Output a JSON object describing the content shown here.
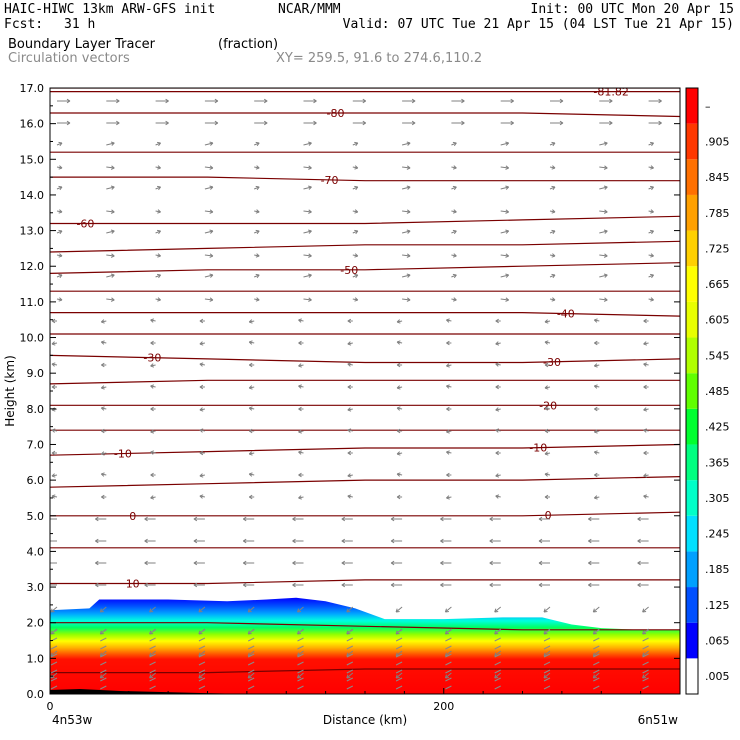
{
  "header": {
    "model": "HAIC-HIWC 13km ARW-GFS init",
    "org": "NCAR/MMM",
    "init": "Init: 00 UTC Mon 20 Apr 15",
    "fcst_label": "Fcst:",
    "fcst_value": "31 h",
    "valid": "Valid: 07 UTC Tue 21 Apr 15 (04 LST Tue 21 Apr 15)",
    "field": "Boundary Layer Tracer",
    "field_units": "(fraction)",
    "vectors": "Circulation vectors",
    "xy": "XY= 259.5, 91.6 to 274.6,110.2"
  },
  "chart_data": {
    "type": "cross-section",
    "xlabel": "Distance (km)",
    "ylabel": "Height (km)",
    "xlim": [
      0,
      320
    ],
    "ylim": [
      0,
      17
    ],
    "x_ticks": [
      0,
      200
    ],
    "x_tick_labels": [
      "0",
      "200"
    ],
    "y_ticks": [
      0,
      1,
      2,
      3,
      4,
      5,
      6,
      7,
      8,
      9,
      10,
      11,
      12,
      13,
      14,
      15,
      16,
      17
    ],
    "y_tick_labels": [
      "0.0",
      "1.0",
      "2.0",
      "3.0",
      "4.0",
      "5.0",
      "6.0",
      "7.0",
      "8.0",
      "9.0",
      "10.0",
      "11.0",
      "12.0",
      "13.0",
      "14.0",
      "15.0",
      "16.0",
      "17.0"
    ],
    "endpoints": {
      "left": "4n53w",
      "right": "6n51w"
    },
    "colorbar": {
      "labels": [
        ".005",
        ".065",
        ".125",
        ".185",
        ".245",
        ".305",
        ".365",
        ".425",
        ".485",
        ".545",
        ".605",
        ".665",
        ".725",
        ".785",
        ".845",
        ".905",
        "–"
      ],
      "colors": [
        "#ffffff",
        "#0000ff",
        "#0050ff",
        "#00a0ff",
        "#00e0ff",
        "#00ffc8",
        "#00ff80",
        "#00ff30",
        "#60ff00",
        "#b0ff00",
        "#e8ff00",
        "#ffff00",
        "#ffd000",
        "#ffa000",
        "#ff7000",
        "#ff3800",
        "#ff0000"
      ]
    },
    "tracer_top": {
      "x": [
        0,
        20,
        25,
        60,
        90,
        110,
        125,
        140,
        155,
        170,
        200,
        230,
        250,
        265,
        280,
        300,
        320
      ],
      "height_km": [
        2.35,
        2.4,
        2.65,
        2.65,
        2.6,
        2.65,
        2.7,
        2.6,
        2.4,
        2.1,
        2.1,
        2.15,
        2.15,
        1.95,
        1.85,
        1.8,
        1.8
      ]
    },
    "temperature_contours": [
      {
        "label": "10",
        "heights_km": [
          3.1,
          3.1,
          3.2,
          3.2,
          3.2
        ],
        "label_x": 42
      },
      {
        "label": "0",
        "heights_km": [
          5.0,
          5.0,
          5.0,
          5.0,
          5.1
        ],
        "label_x": 42
      },
      {
        "label": "0",
        "heights_km": [
          5.0,
          5.0,
          5.0,
          5.0,
          5.1
        ],
        "label_x": 253
      },
      {
        "label": "-10",
        "heights_km": [
          6.7,
          6.8,
          6.9,
          6.9,
          7.0
        ],
        "label_x": 37
      },
      {
        "label": "-10",
        "heights_km": [
          6.7,
          6.8,
          6.9,
          6.9,
          7.0
        ],
        "label_x": 248
      },
      {
        "label": "-20",
        "heights_km": [
          8.1,
          8.1,
          8.1,
          8.1,
          8.1
        ],
        "label_x": 253
      },
      {
        "label": "-30",
        "heights_km": [
          9.5,
          9.4,
          9.3,
          9.3,
          9.4
        ],
        "label_x": 52
      },
      {
        "label": "-30",
        "heights_km": [
          9.5,
          9.4,
          9.3,
          9.3,
          9.4
        ],
        "label_x": 255
      },
      {
        "label": "-40",
        "heights_km": [
          10.7,
          10.7,
          10.7,
          10.7,
          10.6
        ],
        "label_x": 262
      },
      {
        "label": "-50",
        "heights_km": [
          11.8,
          11.9,
          11.9,
          12.0,
          12.1
        ],
        "label_x": 152
      },
      {
        "label": "-60",
        "heights_km": [
          13.2,
          13.2,
          13.2,
          13.3,
          13.4
        ],
        "label_x": 18
      },
      {
        "label": "-70",
        "heights_km": [
          14.5,
          14.5,
          14.4,
          14.4,
          14.4
        ],
        "label_x": 142
      },
      {
        "label": "-80",
        "heights_km": [
          16.3,
          16.3,
          16.3,
          16.3,
          16.2
        ],
        "label_x": 145
      },
      {
        "label": "-81.82",
        "heights_km": [
          16.9,
          16.9,
          16.9,
          16.9,
          16.9
        ],
        "label_x": 285
      }
    ],
    "other_contours_km": [
      [
        0.6,
        0.6,
        0.7,
        0.7,
        0.7
      ],
      [
        2.0,
        2.0,
        1.9,
        1.8,
        1.8
      ],
      [
        4.1,
        4.1,
        4.1,
        4.1,
        4.1
      ],
      [
        5.8,
        5.9,
        6.0,
        6.0,
        6.1
      ],
      [
        7.4,
        7.4,
        7.4,
        7.4,
        7.4
      ],
      [
        8.7,
        8.8,
        8.8,
        8.8,
        8.8
      ],
      [
        10.1,
        10.1,
        10.1,
        10.1,
        10.1
      ],
      [
        11.3,
        11.3,
        11.3,
        11.3,
        11.3
      ],
      [
        12.4,
        12.5,
        12.6,
        12.6,
        12.7
      ],
      [
        15.2,
        15.2,
        15.2,
        15.2,
        15.2
      ],
      [
        17.0,
        17.0,
        17.0,
        17.0,
        17.0
      ]
    ],
    "contour_color": "#7a0000",
    "vector_color": "#808080"
  }
}
